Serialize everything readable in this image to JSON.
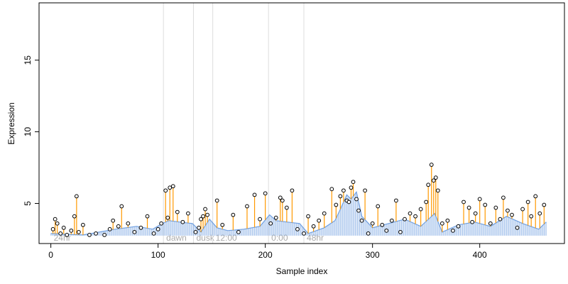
{
  "chart_data": {
    "type": "scatter",
    "xlabel": "Sample index",
    "ylabel": "Expression",
    "xlim": [
      -11,
      479
    ],
    "ylim": [
      2.2,
      19.0
    ],
    "xticks": [
      0,
      100,
      200,
      300,
      400
    ],
    "yticks": [
      5,
      10,
      15
    ],
    "grid": false,
    "legend": "none",
    "colors": {
      "observed_points": "#000000",
      "point_fill": "#ffffff",
      "model_fit": "#6f9fe0",
      "residual_above": "#ff9900",
      "region_divider": "#dddddd",
      "region_label": "#aaaaaa"
    },
    "regions": [
      {
        "label": "24hr",
        "start": 0
      },
      {
        "label": "dawn",
        "start": 105
      },
      {
        "label": "dusk",
        "start": 133
      },
      {
        "label": "12:00",
        "start": 151
      },
      {
        "label": "0:00",
        "start": 203
      },
      {
        "label": "48hr",
        "start": 236
      }
    ],
    "series": [
      {
        "kind": "observed",
        "x": [
          2,
          4,
          6,
          9,
          12,
          15,
          19,
          22,
          24,
          26,
          30,
          36,
          42,
          50,
          55,
          58,
          63,
          66,
          72,
          78,
          84,
          90,
          96,
          100,
          103,
          107,
          109,
          111,
          114,
          118,
          123,
          128,
          135,
          138,
          140,
          142,
          144,
          146,
          155,
          160,
          170,
          175,
          183,
          190,
          195,
          200,
          205,
          210,
          214,
          216,
          220,
          225,
          230,
          236,
          240,
          245,
          250,
          255,
          262,
          266,
          270,
          273,
          276,
          278,
          280,
          282,
          285,
          287,
          290,
          293,
          296,
          300,
          305,
          309,
          313,
          318,
          322,
          326,
          330,
          335,
          340,
          345,
          350,
          352,
          355,
          357,
          359,
          361,
          365,
          370,
          375,
          380,
          385,
          390,
          393,
          396,
          400,
          405,
          410,
          415,
          419,
          422,
          426,
          430,
          435,
          440,
          445,
          448,
          452,
          456,
          460
        ],
        "y": [
          3.2,
          3.9,
          3.6,
          2.9,
          3.3,
          2.8,
          3.1,
          4.1,
          5.5,
          3.0,
          3.5,
          2.8,
          2.9,
          2.8,
          3.2,
          3.8,
          3.4,
          4.8,
          3.6,
          3.0,
          3.3,
          4.1,
          2.9,
          3.2,
          3.6,
          5.9,
          4.0,
          6.1,
          6.2,
          4.4,
          3.7,
          4.3,
          3.0,
          3.3,
          3.9,
          4.1,
          4.6,
          4.2,
          5.2,
          3.5,
          4.2,
          3.0,
          4.8,
          5.6,
          3.9,
          5.7,
          3.6,
          4.0,
          5.4,
          5.2,
          4.7,
          5.9,
          3.2,
          2.9,
          4.1,
          3.4,
          3.8,
          4.3,
          6.0,
          4.9,
          5.5,
          5.9,
          5.2,
          5.1,
          6.1,
          6.5,
          5.3,
          4.5,
          3.8,
          5.9,
          2.9,
          3.6,
          4.8,
          3.5,
          3.1,
          3.8,
          5.2,
          3.0,
          3.9,
          4.3,
          4.1,
          4.6,
          5.1,
          6.3,
          7.7,
          6.6,
          6.8,
          5.9,
          3.6,
          3.8,
          3.1,
          3.4,
          5.1,
          4.7,
          3.7,
          4.3,
          5.3,
          4.9,
          3.6,
          4.7,
          3.9,
          5.4,
          4.5,
          4.2,
          3.3,
          4.6,
          5.1,
          4.1,
          5.5,
          4.3,
          4.9
        ]
      },
      {
        "kind": "model",
        "x": [
          0,
          30,
          60,
          80,
          95,
          104,
          110,
          120,
          132,
          140,
          148,
          155,
          165,
          180,
          195,
          204,
          210,
          220,
          232,
          240,
          255,
          265,
          270,
          276,
          280,
          285,
          290,
          300,
          315,
          330,
          345,
          358,
          365,
          380,
          395,
          410,
          425,
          440,
          455,
          462
        ],
        "y": [
          2.9,
          2.8,
          3.2,
          3.4,
          3.2,
          3.6,
          3.8,
          3.7,
          3.6,
          3.0,
          3.9,
          3.3,
          3.1,
          3.2,
          3.4,
          4.2,
          3.8,
          3.7,
          3.6,
          2.9,
          3.3,
          3.8,
          4.6,
          5.6,
          5.3,
          5.8,
          4.1,
          3.3,
          3.6,
          3.9,
          3.4,
          4.3,
          3.0,
          3.5,
          3.7,
          3.4,
          4.1,
          3.6,
          3.2,
          3.7
        ]
      }
    ]
  }
}
